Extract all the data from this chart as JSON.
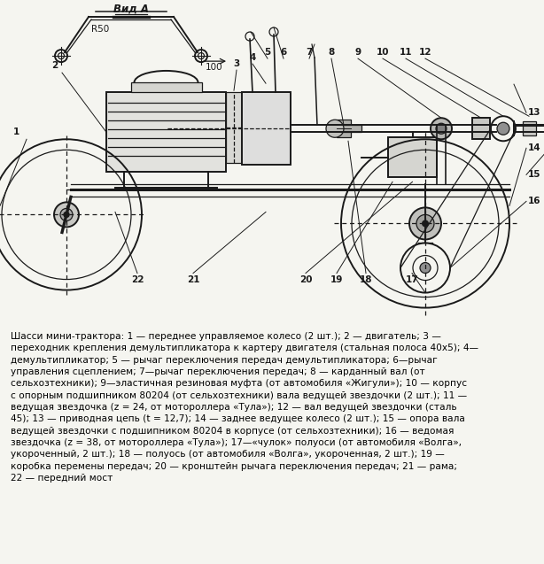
{
  "bg_color": "#f5f5f0",
  "lc": "#1a1a1a",
  "figsize": [
    6.14,
    6.37
  ],
  "dpi": 100,
  "title_view": "Вид А",
  "dim_r": "R50",
  "dim_100": "100",
  "caption": "Шасси мини-трактора: 1 — переднее управляемое колесо (2 шт.); 2 — двигатель; 3 —\nпереходник крепления демультипликатора к картеру двигателя (стальная полоса 40х5); 4—\nдемультипликатор; 5 — рычаг переключения передач демультипликатора; 6—рычаг\nуправления сцеплением; 7—рычаг переключения передач; 8 — карданный вал (от\nсельхозтехники); 9—эластичная резиновая муфта (от автомобиля «Жигули»); 10 — корпус\nс опорным подшипником 80204 (от сельхозтехники) вала ведущей звездочки (2 шт.); 11 —\nведущая звездочка (z = 24, от мотороллера «Тула»); 12 — вал ведущей звездочки (сталь\n45); 13 — приводная цепь (t = 12,7); 14 — заднее ведущее колесо (2 шт.); 15 — опора вала\nведущей звездочки с подшипником 80204 в корпусе (от сельхозтехники); 16 — ведомая\nзвездочка (z = 38, от мотороллера «Тула»); 17—«чулок» полуоси (от автомобиля «Волга»,\nукороченный, 2 шт.); 18 — полуось (от автомобиля «Волга», укороченная, 2 шт.); 19 —\nкоробка перемены передач; 20 — кронштейн рычага переключения передач; 21 — рама;\n22 — передний мост"
}
